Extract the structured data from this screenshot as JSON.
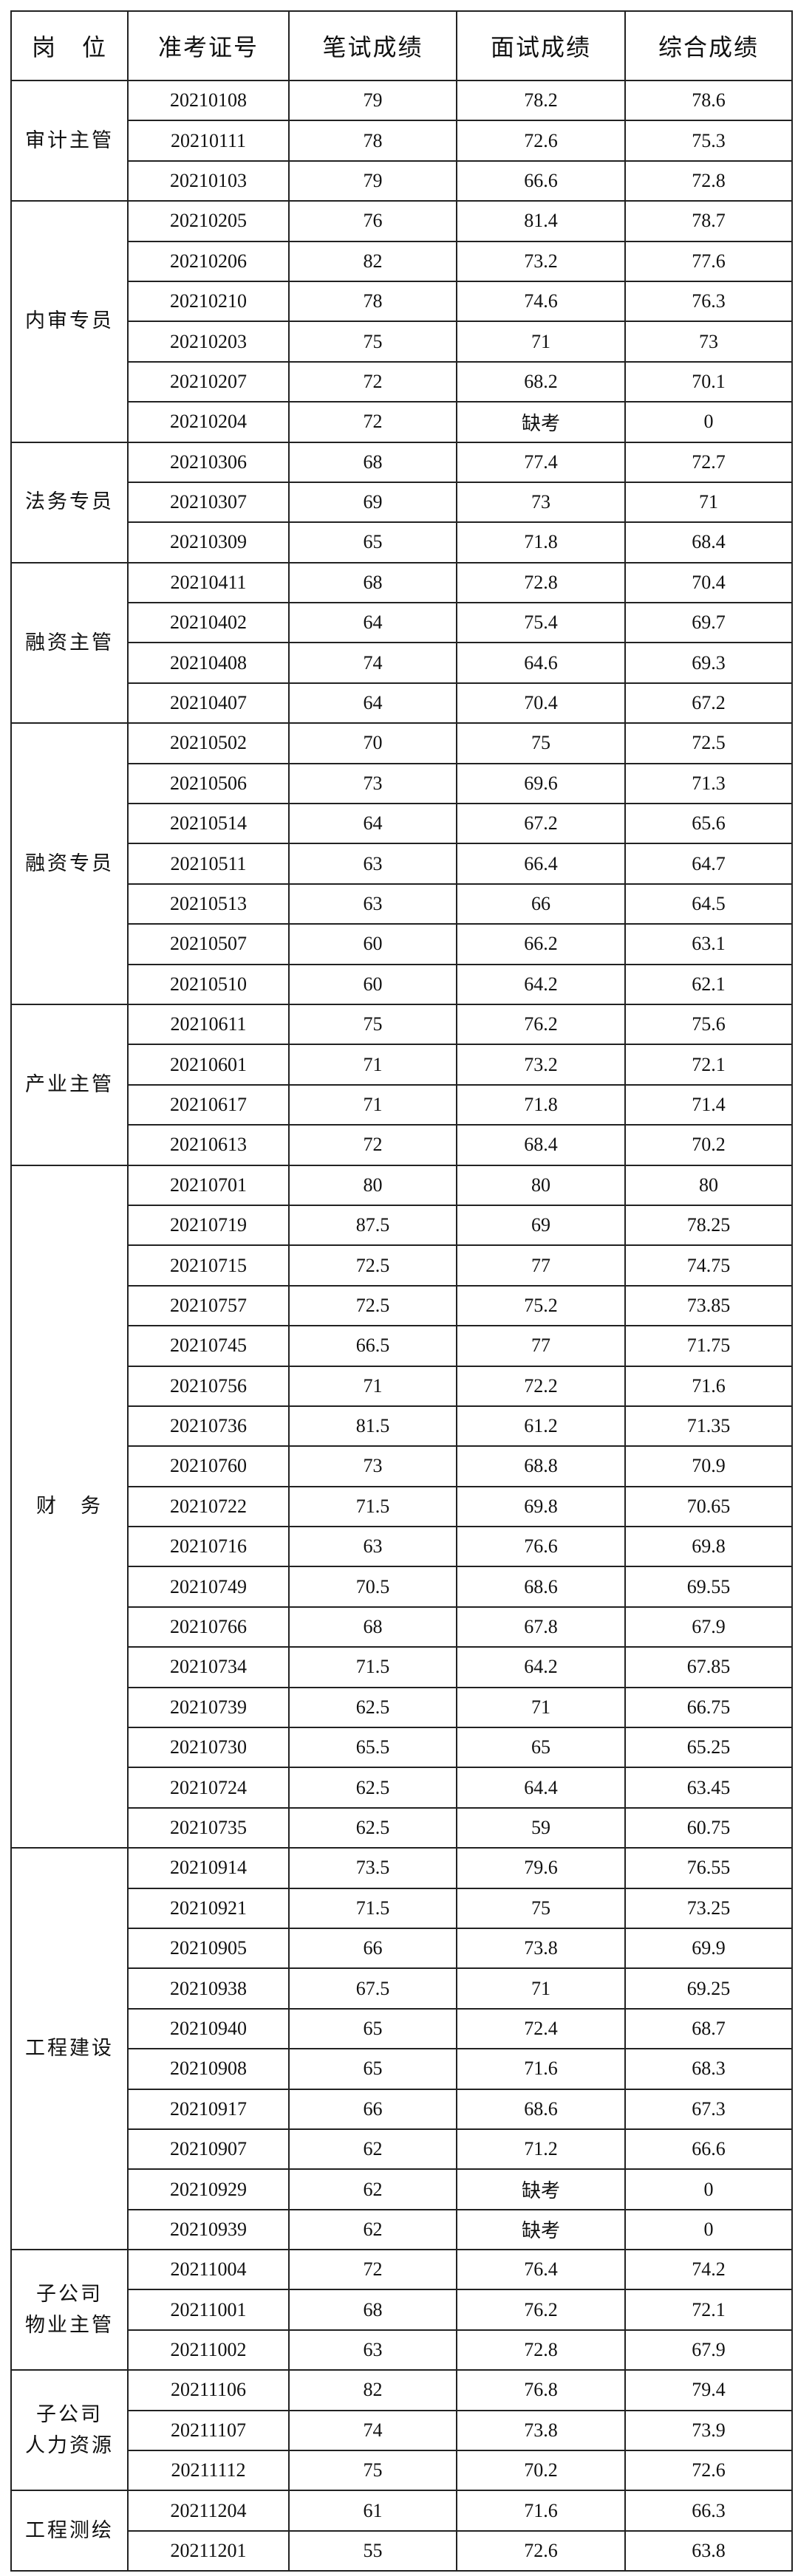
{
  "header": [
    "岗　位",
    "准考证号",
    "笔试成绩",
    "面试成绩",
    "综合成绩"
  ],
  "groups": [
    {
      "position": "审计主管",
      "rows": [
        [
          "20210108",
          "79",
          "78.2",
          "78.6"
        ],
        [
          "20210111",
          "78",
          "72.6",
          "75.3"
        ],
        [
          "20210103",
          "79",
          "66.6",
          "72.8"
        ]
      ]
    },
    {
      "position": "内审专员",
      "rows": [
        [
          "20210205",
          "76",
          "81.4",
          "78.7"
        ],
        [
          "20210206",
          "82",
          "73.2",
          "77.6"
        ],
        [
          "20210210",
          "78",
          "74.6",
          "76.3"
        ],
        [
          "20210203",
          "75",
          "71",
          "73"
        ],
        [
          "20210207",
          "72",
          "68.2",
          "70.1"
        ],
        [
          "20210204",
          "72",
          "缺考",
          "0"
        ]
      ]
    },
    {
      "position": "法务专员",
      "rows": [
        [
          "20210306",
          "68",
          "77.4",
          "72.7"
        ],
        [
          "20210307",
          "69",
          "73",
          "71"
        ],
        [
          "20210309",
          "65",
          "71.8",
          "68.4"
        ]
      ]
    },
    {
      "position": "融资主管",
      "rows": [
        [
          "20210411",
          "68",
          "72.8",
          "70.4"
        ],
        [
          "20210402",
          "64",
          "75.4",
          "69.7"
        ],
        [
          "20210408",
          "74",
          "64.6",
          "69.3"
        ],
        [
          "20210407",
          "64",
          "70.4",
          "67.2"
        ]
      ]
    },
    {
      "position": "融资专员",
      "rows": [
        [
          "20210502",
          "70",
          "75",
          "72.5"
        ],
        [
          "20210506",
          "73",
          "69.6",
          "71.3"
        ],
        [
          "20210514",
          "64",
          "67.2",
          "65.6"
        ],
        [
          "20210511",
          "63",
          "66.4",
          "64.7"
        ],
        [
          "20210513",
          "63",
          "66",
          "64.5"
        ],
        [
          "20210507",
          "60",
          "66.2",
          "63.1"
        ],
        [
          "20210510",
          "60",
          "64.2",
          "62.1"
        ]
      ]
    },
    {
      "position": "产业主管",
      "rows": [
        [
          "20210611",
          "75",
          "76.2",
          "75.6"
        ],
        [
          "20210601",
          "71",
          "73.2",
          "72.1"
        ],
        [
          "20210617",
          "71",
          "71.8",
          "71.4"
        ],
        [
          "20210613",
          "72",
          "68.4",
          "70.2"
        ]
      ]
    },
    {
      "position": "财　务",
      "rows": [
        [
          "20210701",
          "80",
          "80",
          "80"
        ],
        [
          "20210719",
          "87.5",
          "69",
          "78.25"
        ],
        [
          "20210715",
          "72.5",
          "77",
          "74.75"
        ],
        [
          "20210757",
          "72.5",
          "75.2",
          "73.85"
        ],
        [
          "20210745",
          "66.5",
          "77",
          "71.75"
        ],
        [
          "20210756",
          "71",
          "72.2",
          "71.6"
        ],
        [
          "20210736",
          "81.5",
          "61.2",
          "71.35"
        ],
        [
          "20210760",
          "73",
          "68.8",
          "70.9"
        ],
        [
          "20210722",
          "71.5",
          "69.8",
          "70.65"
        ],
        [
          "20210716",
          "63",
          "76.6",
          "69.8"
        ],
        [
          "20210749",
          "70.5",
          "68.6",
          "69.55"
        ],
        [
          "20210766",
          "68",
          "67.8",
          "67.9"
        ],
        [
          "20210734",
          "71.5",
          "64.2",
          "67.85"
        ],
        [
          "20210739",
          "62.5",
          "71",
          "66.75"
        ],
        [
          "20210730",
          "65.5",
          "65",
          "65.25"
        ],
        [
          "20210724",
          "62.5",
          "64.4",
          "63.45"
        ],
        [
          "20210735",
          "62.5",
          "59",
          "60.75"
        ]
      ]
    },
    {
      "position": "工程建设",
      "rows": [
        [
          "20210914",
          "73.5",
          "79.6",
          "76.55"
        ],
        [
          "20210921",
          "71.5",
          "75",
          "73.25"
        ],
        [
          "20210905",
          "66",
          "73.8",
          "69.9"
        ],
        [
          "20210938",
          "67.5",
          "71",
          "69.25"
        ],
        [
          "20210940",
          "65",
          "72.4",
          "68.7"
        ],
        [
          "20210908",
          "65",
          "71.6",
          "68.3"
        ],
        [
          "20210917",
          "66",
          "68.6",
          "67.3"
        ],
        [
          "20210907",
          "62",
          "71.2",
          "66.6"
        ],
        [
          "20210929",
          "62",
          "缺考",
          "0"
        ],
        [
          "20210939",
          "62",
          "缺考",
          "0"
        ]
      ]
    },
    {
      "position": "子公司\n物业主管",
      "rows": [
        [
          "20211004",
          "72",
          "76.4",
          "74.2"
        ],
        [
          "20211001",
          "68",
          "76.2",
          "72.1"
        ],
        [
          "20211002",
          "63",
          "72.8",
          "67.9"
        ]
      ]
    },
    {
      "position": "子公司\n人力资源",
      "rows": [
        [
          "20211106",
          "82",
          "76.8",
          "79.4"
        ],
        [
          "20211107",
          "74",
          "73.8",
          "73.9"
        ],
        [
          "20211112",
          "75",
          "70.2",
          "72.6"
        ]
      ]
    },
    {
      "position": "工程测绘",
      "rows": [
        [
          "20211204",
          "61",
          "71.6",
          "66.3"
        ],
        [
          "20211201",
          "55",
          "72.6",
          "63.8"
        ]
      ]
    }
  ]
}
